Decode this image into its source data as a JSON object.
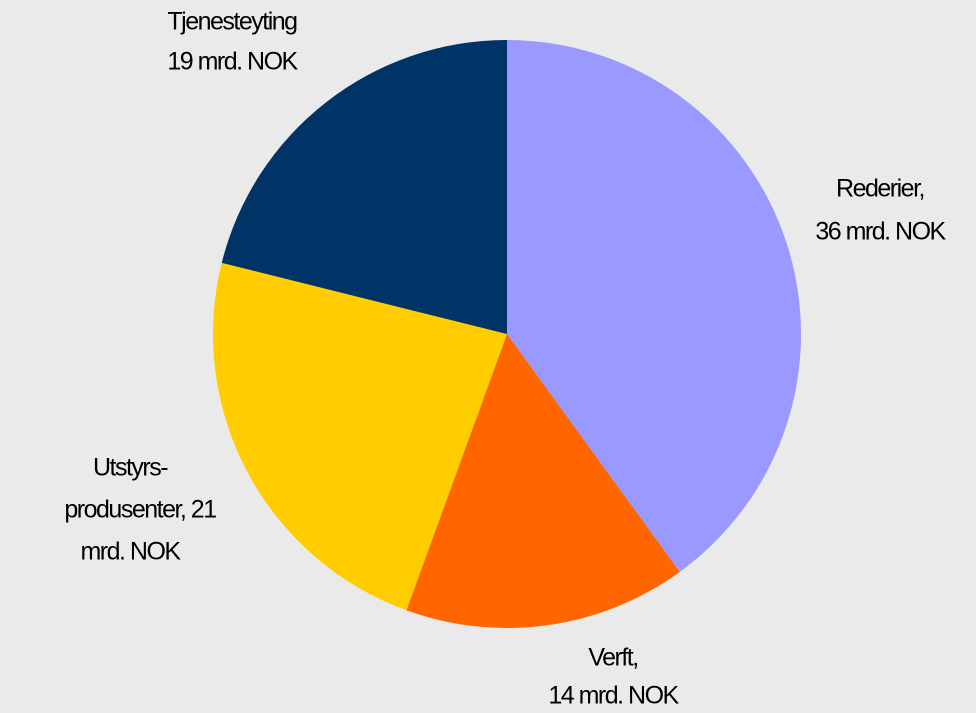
{
  "chart_data": {
    "type": "pie",
    "categories": [
      "Rederier",
      "Verft",
      "Utstyrsprodusenter",
      "Tjenesteyting"
    ],
    "values": [
      36,
      14,
      21,
      19
    ],
    "value_labels": [
      [
        "Rederier,",
        "36 mrd. NOK"
      ],
      [
        "Verft,",
        "14  mrd. NOK"
      ],
      [
        "Utstyrs-",
        "produsenter,  21",
        "mrd. NOK"
      ],
      [
        "Tjenesteyting",
        "19 mrd. NOK"
      ]
    ],
    "colors": [
      "#9999ff",
      "#ff6600",
      "#ffcc00",
      "#003366"
    ]
  }
}
